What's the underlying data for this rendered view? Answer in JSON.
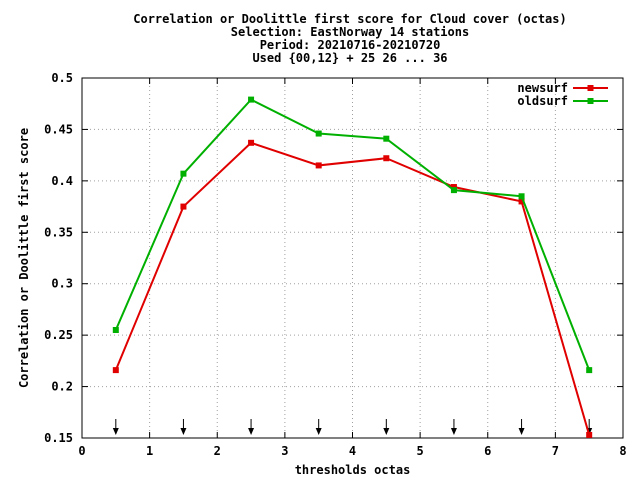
{
  "chart_data": {
    "type": "line",
    "title_lines": [
      "Correlation or Doolittle first score  for Cloud cover (octas)",
      "Selection: EastNorway     14 stations",
      "Period: 20210716-20210720",
      "Used {00,12} + 25 26 ... 36"
    ],
    "xlabel": "thresholds octas",
    "ylabel": "Correlation or Doolittle first score",
    "xlim": [
      0,
      8
    ],
    "ylim": [
      0.15,
      0.5
    ],
    "x_ticks": [
      "0",
      "1",
      "2",
      "3",
      "4",
      "5",
      "6",
      "7",
      "8"
    ],
    "y_ticks": [
      "0.15",
      "0.2",
      "0.25",
      "0.3",
      "0.35",
      "0.4",
      "0.45",
      "0.5"
    ],
    "grid": true,
    "legend_position": "top-right",
    "x": [
      0.5,
      1.5,
      2.5,
      3.5,
      4.5,
      5.5,
      6.5,
      7.5
    ],
    "arrow_markers_x": [
      0.5,
      1.5,
      2.5,
      3.5,
      4.5,
      5.5,
      6.5,
      7.5
    ],
    "series": [
      {
        "name": "newsurf",
        "color": "#e00000",
        "values": [
          0.216,
          0.375,
          0.437,
          0.415,
          0.422,
          0.394,
          0.38,
          0.153
        ]
      },
      {
        "name": "oldsurf",
        "color": "#00b000",
        "values": [
          0.255,
          0.407,
          0.479,
          0.446,
          0.441,
          0.391,
          0.385,
          0.216
        ]
      }
    ]
  }
}
